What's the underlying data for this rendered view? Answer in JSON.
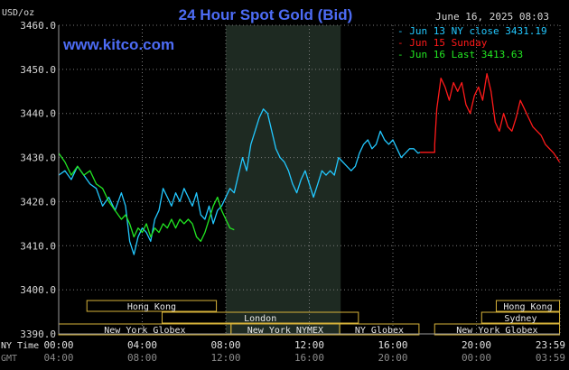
{
  "chart_data": {
    "type": "line",
    "title": "24 Hour Spot Gold (Bid)",
    "source": "www.kitco.com",
    "date": "June 16, 2025 08:03",
    "y_unit": "USD/oz",
    "ylim": [
      3390,
      3460
    ],
    "y_ticks": [
      "3460.0",
      "3450.0",
      "3440.0",
      "3430.0",
      "3420.0",
      "3410.0",
      "3400.0",
      "3390.0"
    ],
    "x_axis_rows": [
      {
        "name": "NY Time",
        "ticks": [
          "00:00",
          "04:00",
          "08:00",
          "12:00",
          "16:00",
          "20:00",
          "23:59"
        ]
      },
      {
        "name": "GMT",
        "ticks": [
          "04:00",
          "08:00",
          "12:00",
          "16:00",
          "20:00",
          "00:00",
          "03:59"
        ]
      }
    ],
    "grid": true,
    "legend_position": "top-right",
    "series": [
      {
        "name": "Jun 13 NY close 3431.19",
        "color": "#22c8ff",
        "points": [
          [
            0.0,
            3426
          ],
          [
            0.3,
            3427
          ],
          [
            0.6,
            3425
          ],
          [
            0.9,
            3428
          ],
          [
            1.2,
            3426
          ],
          [
            1.5,
            3424
          ],
          [
            1.8,
            3423
          ],
          [
            2.1,
            3419
          ],
          [
            2.4,
            3421
          ],
          [
            2.7,
            3418
          ],
          [
            3.0,
            3422
          ],
          [
            3.2,
            3419
          ],
          [
            3.4,
            3411
          ],
          [
            3.6,
            3408
          ],
          [
            3.8,
            3412
          ],
          [
            4.0,
            3414
          ],
          [
            4.2,
            3413
          ],
          [
            4.4,
            3411
          ],
          [
            4.6,
            3416
          ],
          [
            4.8,
            3418
          ],
          [
            5.0,
            3423
          ],
          [
            5.2,
            3421
          ],
          [
            5.4,
            3419
          ],
          [
            5.6,
            3422
          ],
          [
            5.8,
            3420
          ],
          [
            6.0,
            3423
          ],
          [
            6.2,
            3421
          ],
          [
            6.4,
            3419
          ],
          [
            6.6,
            3422
          ],
          [
            6.8,
            3417
          ],
          [
            7.0,
            3416
          ],
          [
            7.2,
            3419
          ],
          [
            7.4,
            3415
          ],
          [
            7.6,
            3418
          ],
          [
            7.8,
            3419
          ],
          [
            8.0,
            3421
          ],
          [
            8.2,
            3423
          ],
          [
            8.4,
            3422
          ],
          [
            8.6,
            3426
          ],
          [
            8.8,
            3430
          ],
          [
            9.0,
            3427
          ],
          [
            9.2,
            3433
          ],
          [
            9.4,
            3436
          ],
          [
            9.6,
            3439
          ],
          [
            9.8,
            3441
          ],
          [
            10.0,
            3440
          ],
          [
            10.2,
            3436
          ],
          [
            10.4,
            3432
          ],
          [
            10.6,
            3430
          ],
          [
            10.8,
            3429
          ],
          [
            11.0,
            3427
          ],
          [
            11.2,
            3424
          ],
          [
            11.4,
            3422
          ],
          [
            11.6,
            3425
          ],
          [
            11.8,
            3427
          ],
          [
            12.0,
            3424
          ],
          [
            12.2,
            3421
          ],
          [
            12.4,
            3424
          ],
          [
            12.6,
            3427
          ],
          [
            12.8,
            3426
          ],
          [
            13.0,
            3427
          ],
          [
            13.2,
            3426
          ],
          [
            13.4,
            3430
          ],
          [
            13.6,
            3429
          ],
          [
            13.8,
            3428
          ],
          [
            14.0,
            3427
          ],
          [
            14.2,
            3428
          ],
          [
            14.4,
            3431
          ],
          [
            14.6,
            3433
          ],
          [
            14.8,
            3434
          ],
          [
            15.0,
            3432
          ],
          [
            15.2,
            3433
          ],
          [
            15.4,
            3436
          ],
          [
            15.6,
            3434
          ],
          [
            15.8,
            3433
          ],
          [
            16.0,
            3434
          ],
          [
            16.2,
            3432
          ],
          [
            16.4,
            3430
          ],
          [
            16.6,
            3431
          ],
          [
            16.8,
            3432
          ],
          [
            17.0,
            3432
          ],
          [
            17.2,
            3431
          ],
          [
            17.3,
            3431.19
          ]
        ]
      },
      {
        "name": "Jun 15 Sunday",
        "color": "#ff1a1a",
        "points": [
          [
            17.3,
            3431.19
          ],
          [
            18.0,
            3431.19
          ],
          [
            18.0,
            3433
          ],
          [
            18.1,
            3441
          ],
          [
            18.3,
            3448
          ],
          [
            18.5,
            3446
          ],
          [
            18.7,
            3443
          ],
          [
            18.9,
            3447
          ],
          [
            19.1,
            3445
          ],
          [
            19.3,
            3447
          ],
          [
            19.5,
            3442
          ],
          [
            19.7,
            3440
          ],
          [
            19.9,
            3444
          ],
          [
            20.1,
            3446
          ],
          [
            20.3,
            3443
          ],
          [
            20.5,
            3449
          ],
          [
            20.7,
            3445
          ],
          [
            20.9,
            3438
          ],
          [
            21.1,
            3436
          ],
          [
            21.3,
            3440
          ],
          [
            21.5,
            3437
          ],
          [
            21.7,
            3436
          ],
          [
            21.9,
            3439
          ],
          [
            22.1,
            3443
          ],
          [
            22.3,
            3441
          ],
          [
            22.5,
            3439
          ],
          [
            22.7,
            3437
          ],
          [
            22.9,
            3436
          ],
          [
            23.1,
            3435
          ],
          [
            23.3,
            3433
          ],
          [
            23.5,
            3432
          ],
          [
            23.7,
            3431
          ],
          [
            23.98,
            3429
          ]
        ]
      },
      {
        "name": "Jun 16 Last 3413.63",
        "color": "#22e622",
        "points": [
          [
            0.0,
            3431
          ],
          [
            0.3,
            3429
          ],
          [
            0.6,
            3426
          ],
          [
            0.9,
            3428
          ],
          [
            1.2,
            3426
          ],
          [
            1.5,
            3427
          ],
          [
            1.8,
            3424
          ],
          [
            2.1,
            3423
          ],
          [
            2.4,
            3420
          ],
          [
            2.7,
            3418
          ],
          [
            3.0,
            3416
          ],
          [
            3.2,
            3417
          ],
          [
            3.4,
            3415
          ],
          [
            3.6,
            3412
          ],
          [
            3.8,
            3414
          ],
          [
            4.0,
            3413
          ],
          [
            4.2,
            3415
          ],
          [
            4.4,
            3412
          ],
          [
            4.6,
            3414
          ],
          [
            4.8,
            3413
          ],
          [
            5.0,
            3415
          ],
          [
            5.2,
            3414
          ],
          [
            5.4,
            3416
          ],
          [
            5.6,
            3414
          ],
          [
            5.8,
            3416
          ],
          [
            6.0,
            3415
          ],
          [
            6.2,
            3416
          ],
          [
            6.4,
            3415
          ],
          [
            6.6,
            3412
          ],
          [
            6.8,
            3411
          ],
          [
            7.0,
            3413
          ],
          [
            7.2,
            3416
          ],
          [
            7.4,
            3419
          ],
          [
            7.6,
            3421
          ],
          [
            7.8,
            3418
          ],
          [
            8.0,
            3416
          ],
          [
            8.2,
            3414
          ],
          [
            8.4,
            3413.63
          ]
        ]
      }
    ],
    "sessions": [
      {
        "label": "Hong Kong",
        "from": 1.35,
        "to": 7.55,
        "row": 0
      },
      {
        "label": "London",
        "from": 4.95,
        "to": 14.35,
        "row": 1
      },
      {
        "label": "New York Globex",
        "from": 0.0,
        "to": 8.25,
        "row": 2
      },
      {
        "label": "New York NYMEX",
        "from": 8.25,
        "to": 13.45,
        "row": 2
      },
      {
        "label": "NY Globex",
        "from": 13.45,
        "to": 17.25,
        "row": 2
      },
      {
        "label": "Hong Kong",
        "from": 20.95,
        "to": 23.98,
        "row": 0
      },
      {
        "label": "Sydney",
        "from": 20.25,
        "to": 23.98,
        "row": 1
      },
      {
        "label": "New York Globex",
        "from": 18.0,
        "to": 23.98,
        "row": 2
      }
    ],
    "highlight_band": {
      "from": 8.0,
      "to": 13.5,
      "color": "#1e2a22"
    }
  }
}
